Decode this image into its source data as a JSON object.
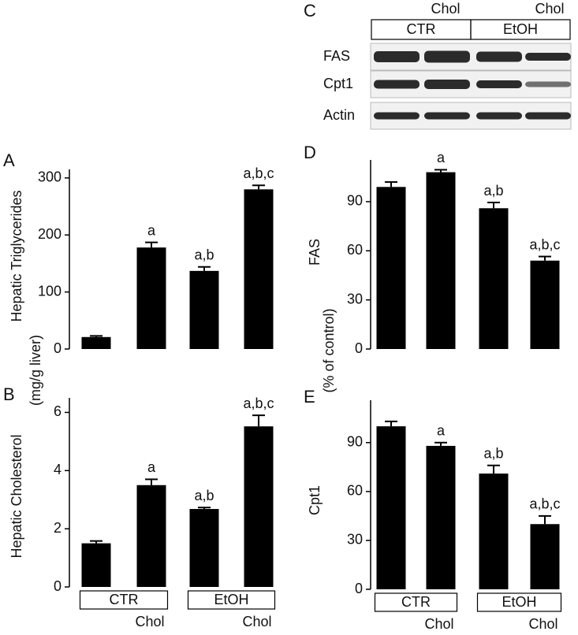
{
  "chart_data": [
    {
      "type": "bar",
      "panel": "A",
      "ylabel": "Hepatic Triglycerides",
      "categories": [
        null,
        null,
        null,
        null
      ],
      "values": [
        21,
        178,
        137,
        280
      ],
      "errors": [
        2,
        9,
        7,
        7
      ],
      "annotations": [
        null,
        "a",
        "a,b",
        "a,b,c"
      ],
      "ylim": [
        0,
        315
      ],
      "yticks": [
        0,
        100,
        200,
        300
      ],
      "color": "#000000"
    },
    {
      "type": "bar",
      "panel": "B",
      "ylabel": "Hepatic Cholesterol",
      "categories": [
        null,
        "Chol",
        null,
        "Chol"
      ],
      "groups": [
        "CTR",
        "EtOH"
      ],
      "values": [
        1.5,
        3.5,
        2.68,
        5.52
      ],
      "errors": [
        0.08,
        0.2,
        0.05,
        0.38
      ],
      "annotations": [
        null,
        "a",
        "a,b",
        "a,b,c"
      ],
      "ylim": [
        0,
        6.5
      ],
      "yticks": [
        0,
        2,
        4,
        6
      ],
      "color": "#000000"
    },
    {
      "type": "bar",
      "panel": "D",
      "ylabel": "FAS",
      "categories": [
        null,
        null,
        null,
        null
      ],
      "values": [
        99,
        108,
        86,
        54
      ],
      "errors": [
        3,
        1.5,
        3.5,
        2.5
      ],
      "annotations": [
        null,
        "a",
        "a,b",
        "a,b,c"
      ],
      "ylim": [
        0,
        115.5
      ],
      "yticks": [
        0,
        30,
        60,
        90
      ],
      "color": "#000000"
    },
    {
      "type": "bar",
      "panel": "E",
      "ylabel": "Cpt1",
      "categories": [
        null,
        "Chol",
        null,
        "Chol"
      ],
      "groups": [
        "CTR",
        "EtOH"
      ],
      "values": [
        100,
        88,
        71,
        40
      ],
      "errors": [
        3,
        2,
        5,
        5
      ],
      "annotations": [
        null,
        "a",
        "a,b",
        "a,b,c"
      ],
      "ylim": [
        0,
        116
      ],
      "yticks": [
        0,
        30,
        60,
        90
      ],
      "color": "#000000"
    }
  ],
  "shared_labels": {
    "left": "(mg/g liver)",
    "right": "(% of control)"
  },
  "blot": {
    "panel": "C",
    "treatments": [
      "Chol",
      "Chol"
    ],
    "groups": [
      "CTR",
      "EtOH"
    ],
    "rows": [
      "FAS",
      "Cpt1",
      "Actin"
    ]
  }
}
